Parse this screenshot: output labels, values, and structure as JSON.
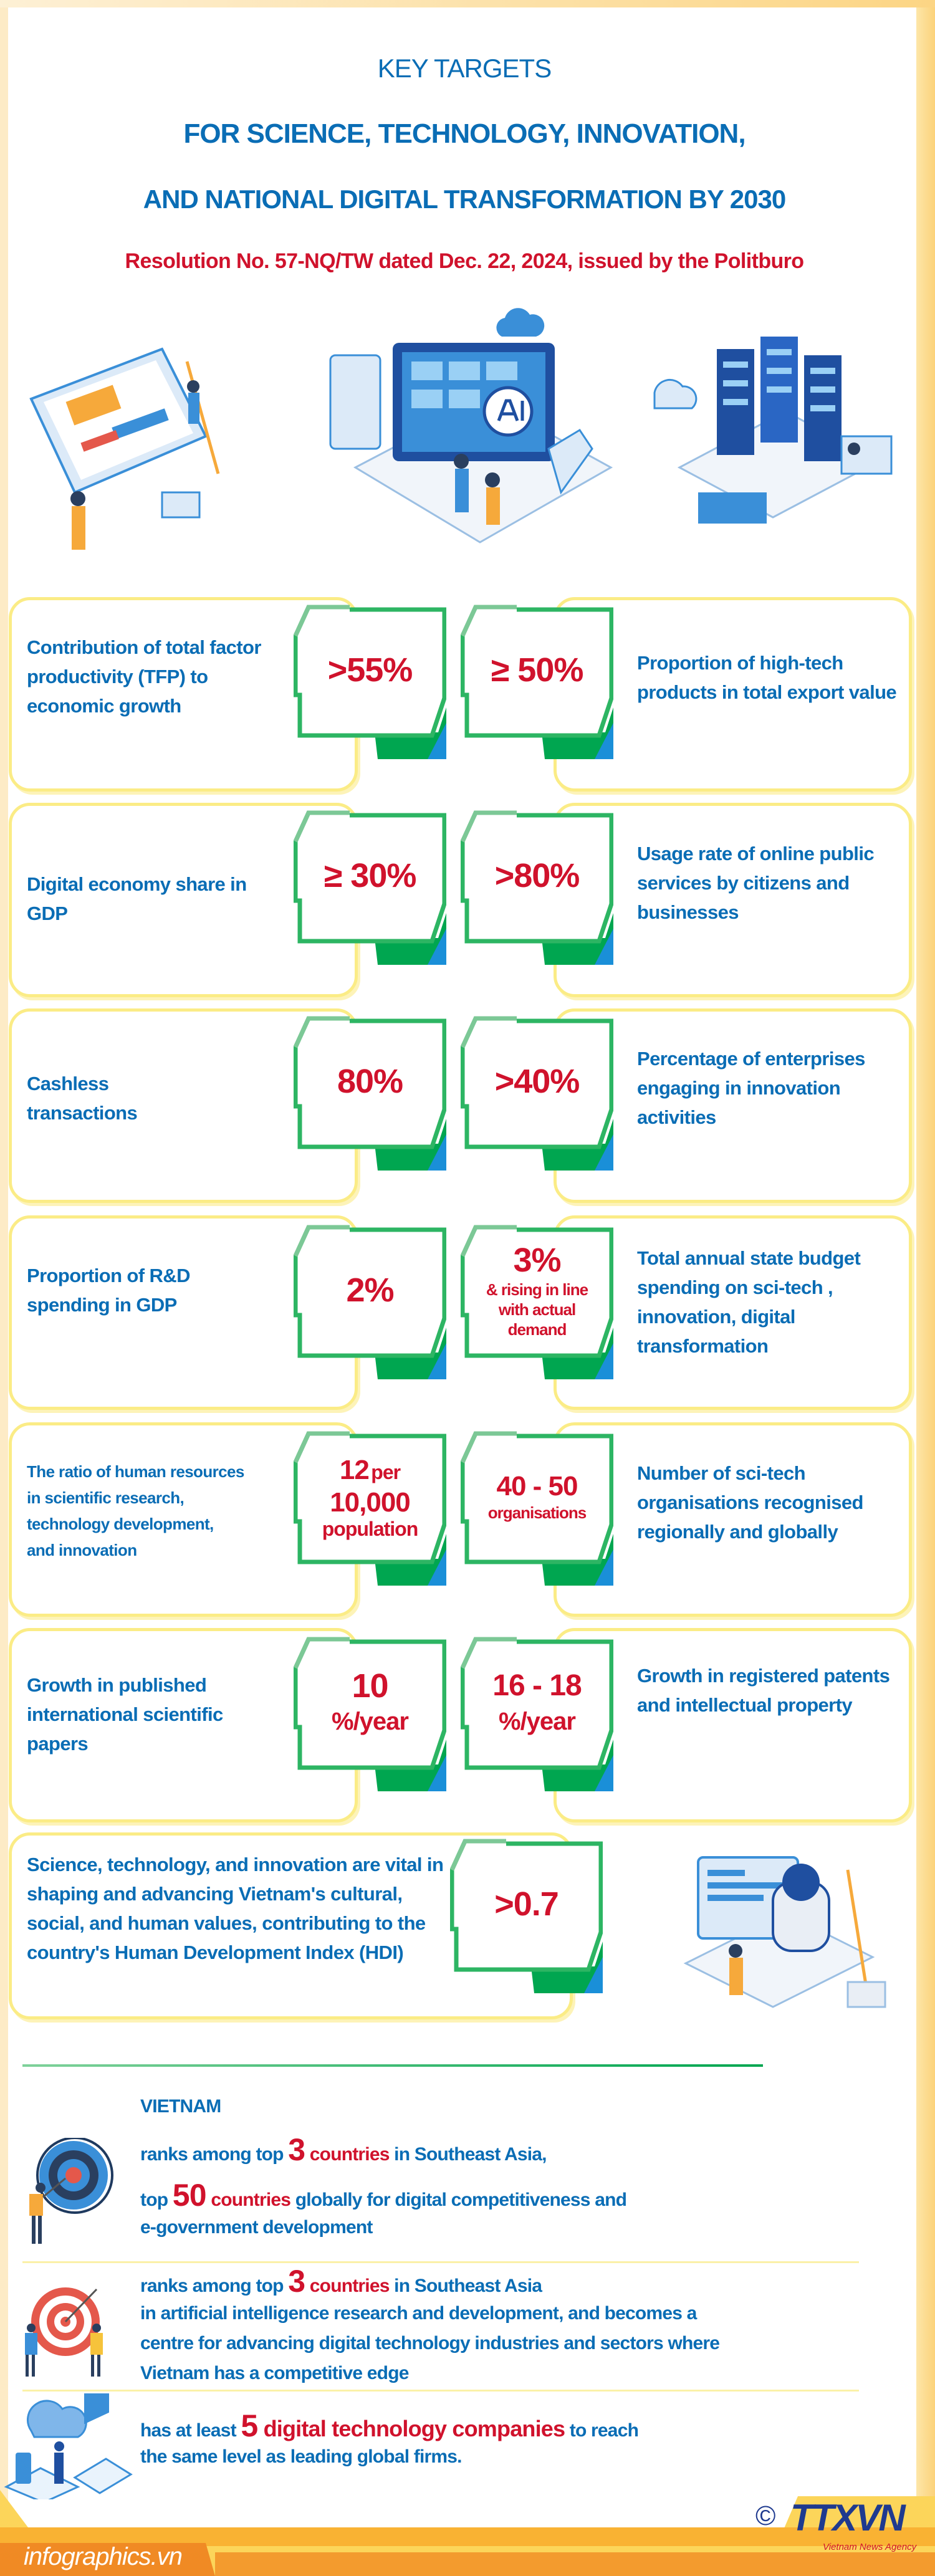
{
  "header": {
    "kicker": "KEY TARGETS",
    "title_line1": "FOR SCIENCE, TECHNOLOGY, INNOVATION,",
    "title_line2": "AND NATIONAL DIGITAL TRANSFORMATION BY 2030",
    "subtitle": "Resolution No. 57-NQ/TW dated Dec. 22, 2024, issued by the Politburo"
  },
  "colors": {
    "blue": "#0a6db5",
    "red": "#d0122c",
    "green": "#00a650",
    "yellow": "#fbec86",
    "orange": "#f08a24"
  },
  "rows": [
    {
      "left_label": "Contribution of total factor productivity (TFP) to economic growth",
      "left_value": ">55%",
      "right_value": "≥ 50%",
      "right_label": "Proportion of high-tech products in total export value"
    },
    {
      "left_label": "Digital economy share in GDP",
      "left_value": "≥ 30%",
      "right_value": ">80%",
      "right_label": "Usage rate of online public services by citizens and businesses"
    },
    {
      "left_label": "Cashless transactions",
      "left_value": "80%",
      "right_value": ">40%",
      "right_label": "Percentage of enterprises engaging in innovation activities"
    },
    {
      "left_label": "Proportion of R&D spending in GDP",
      "left_value": "2%",
      "right_value": "3%",
      "right_value_note": "& rising in line with actual demand",
      "right_label": "Total annual state budget spending on sci-tech , innovation, digital transformation"
    },
    {
      "left_label": "The ratio of human resources in scientific research, technology development, and innovation",
      "left_value": "12",
      "left_value_unit": "per",
      "left_value_line2": "10,000",
      "left_value_line3": "population",
      "right_value": "40 - 50",
      "right_value_note": "organisations",
      "right_label": "Number of  sci-tech organisations recognised regionally and globally"
    },
    {
      "left_label": "Growth in published international scientific papers",
      "left_value": "10",
      "left_value_note": "%/year",
      "right_value": "16 - 18",
      "right_value_note": "%/year",
      "right_label": "Growth in registered patents and intellectual property"
    },
    {
      "left_label": "Science, technology, and innovation are vital in shaping and advancing Vietnam's cultural, social, and human values, contributing to the country's Human Development Index (HDI)",
      "left_value": ">0.7"
    }
  ],
  "vietnam": {
    "heading": "VIETNAM",
    "item1": {
      "l1_a": "ranks among top ",
      "l1_num": "3",
      "l1_em": " countries",
      "l1_b": " in Southeast Asia,",
      "l2_a": "top ",
      "l2_num": "50",
      "l2_em": " countries",
      "l2_b": " globally for digital competitiveness and",
      "l3": "e-government development"
    },
    "item2": {
      "l1_a": "ranks among top ",
      "l1_num": "3",
      "l1_em": " countries",
      "l1_b": " in Southeast Asia",
      "l2": "in artificial intelligence research and development, and becomes a",
      "l3": "centre for advancing digital technology industries and sectors where",
      "l4": "Vietnam has a competitive edge"
    },
    "item3": {
      "l1_a": "has at least ",
      "l1_num": "5",
      "l1_em": " digital technology companies",
      "l1_b": " to reach",
      "l2": "the same level as leading global firms."
    }
  },
  "footer": {
    "site": "infographics.vn",
    "logo": "TTXVN",
    "agency": "Vietnam News Agency",
    "copyright": "©"
  }
}
